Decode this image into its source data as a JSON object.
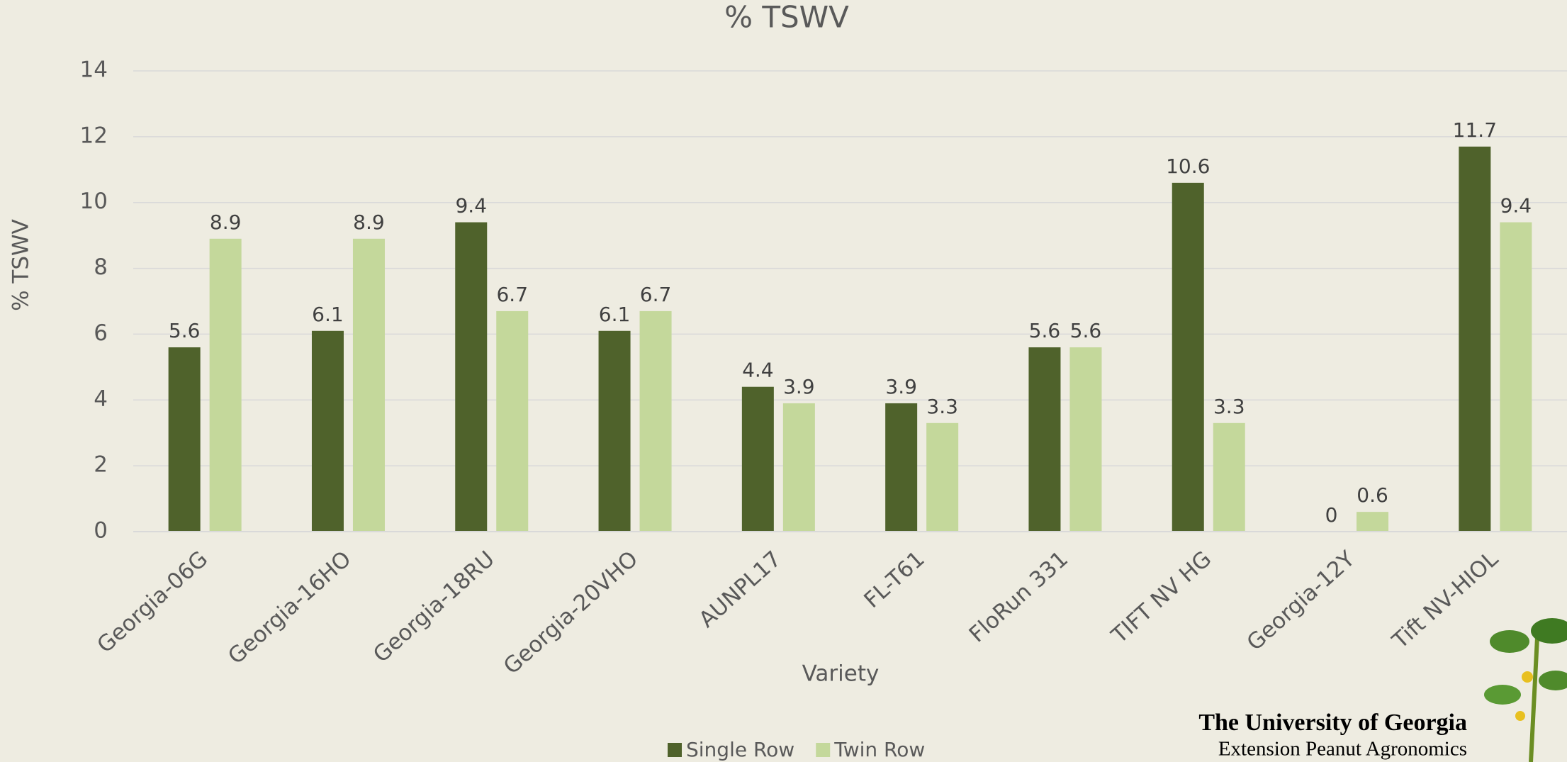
{
  "chart_data": {
    "type": "bar",
    "title": "% TSWV",
    "x_label": "Variety",
    "y_label": "% TSWV",
    "categories": [
      "Georgia-06G",
      "Georgia-16HO",
      "Georgia-18RU",
      "Georgia-20VHO",
      "AUNPL17",
      "FL-T61",
      "FloRun 331",
      "TIFT NV HG",
      "Georgia-12Y",
      "Tift NV-HIOL"
    ],
    "series": [
      {
        "name": "Single Row",
        "color": "#4f622b",
        "values": [
          5.6,
          6.1,
          9.4,
          6.1,
          4.4,
          3.9,
          5.6,
          10.6,
          0,
          11.7
        ]
      },
      {
        "name": "Twin Row",
        "color": "#c4d89b",
        "values": [
          8.9,
          8.9,
          6.7,
          6.7,
          3.9,
          3.3,
          5.6,
          3.3,
          0.6,
          9.4
        ]
      }
    ],
    "ylim": [
      0,
      14
    ],
    "yticks": [
      0,
      2,
      4,
      6,
      8,
      10,
      12,
      14
    ],
    "grid": true,
    "legend": "bottom",
    "annotations": [
      "The University of Georgia",
      "Extension Peanut Agronomics"
    ]
  }
}
